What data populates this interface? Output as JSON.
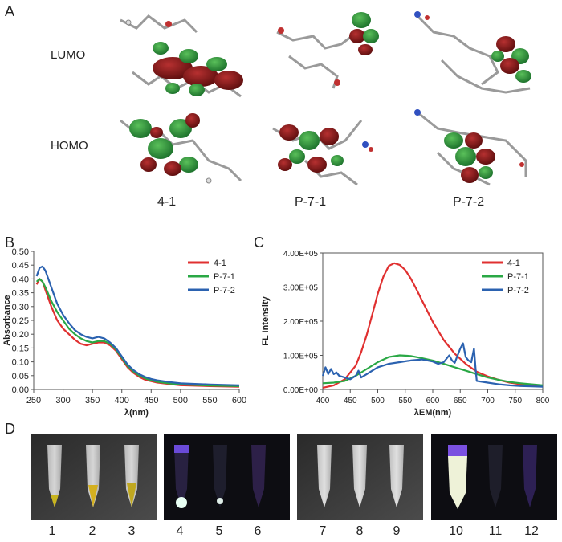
{
  "panel_labels": {
    "a": "A",
    "b": "B",
    "c": "C",
    "d": "D"
  },
  "panelA": {
    "rows": [
      "LUMO",
      "HOMO"
    ],
    "molecules": [
      "4-1",
      "P-7-1",
      "P-7-2"
    ]
  },
  "colors": {
    "red": "#e03030",
    "green": "#2aa845",
    "blue": "#2b62b0"
  },
  "chart_data": [
    {
      "type": "line",
      "panel": "B",
      "xlabel": "λ(nm)",
      "ylabel": "Absorbance",
      "xlim": [
        250,
        600
      ],
      "ylim": [
        0,
        0.5
      ],
      "xticks": [
        "250",
        "300",
        "350",
        "400",
        "450",
        "500",
        "550",
        "600"
      ],
      "yticks": [
        "0.00",
        "0.05",
        "0.10",
        "0.15",
        "0.20",
        "0.25",
        "0.30",
        "0.35",
        "0.40",
        "0.45",
        "0.50"
      ],
      "legend_position": "top-right",
      "series": [
        {
          "name": "4-1",
          "color": "#e03030",
          "x": [
            255,
            260,
            265,
            270,
            280,
            290,
            300,
            310,
            320,
            330,
            340,
            350,
            360,
            370,
            380,
            390,
            400,
            410,
            420,
            430,
            440,
            450,
            460,
            480,
            500,
            550,
            600
          ],
          "y": [
            0.38,
            0.4,
            0.39,
            0.36,
            0.3,
            0.25,
            0.22,
            0.2,
            0.18,
            0.165,
            0.16,
            0.165,
            0.17,
            0.17,
            0.16,
            0.14,
            0.11,
            0.08,
            0.06,
            0.045,
            0.035,
            0.03,
            0.025,
            0.02,
            0.015,
            0.012,
            0.01
          ]
        },
        {
          "name": "P-7-1",
          "color": "#2aa845",
          "x": [
            255,
            260,
            265,
            270,
            280,
            290,
            300,
            310,
            320,
            330,
            340,
            350,
            360,
            370,
            380,
            390,
            400,
            410,
            420,
            430,
            440,
            450,
            460,
            480,
            500,
            550,
            600
          ],
          "y": [
            0.39,
            0.4,
            0.39,
            0.37,
            0.32,
            0.28,
            0.25,
            0.22,
            0.2,
            0.185,
            0.175,
            0.17,
            0.175,
            0.175,
            0.165,
            0.145,
            0.115,
            0.085,
            0.065,
            0.05,
            0.04,
            0.033,
            0.028,
            0.022,
            0.018,
            0.014,
            0.012
          ]
        },
        {
          "name": "P-7-2",
          "color": "#2b62b0",
          "x": [
            255,
            260,
            265,
            270,
            280,
            290,
            300,
            310,
            320,
            330,
            340,
            350,
            360,
            370,
            380,
            390,
            400,
            410,
            420,
            430,
            440,
            450,
            460,
            480,
            500,
            550,
            600
          ],
          "y": [
            0.41,
            0.44,
            0.445,
            0.43,
            0.37,
            0.31,
            0.27,
            0.24,
            0.215,
            0.2,
            0.19,
            0.185,
            0.19,
            0.185,
            0.17,
            0.15,
            0.12,
            0.09,
            0.07,
            0.055,
            0.045,
            0.038,
            0.033,
            0.027,
            0.022,
            0.018,
            0.015
          ]
        }
      ]
    },
    {
      "type": "line",
      "panel": "C",
      "xlabel": "λEM(nm)",
      "ylabel": "FL Intensity",
      "xlim": [
        400,
        800
      ],
      "ylim": [
        0,
        400000
      ],
      "xticks": [
        "400",
        "450",
        "500",
        "550",
        "600",
        "650",
        "700",
        "750",
        "800"
      ],
      "yticks": [
        "0.00E+00",
        "1.00E+05",
        "2.00E+05",
        "3.00E+05",
        "4.00E+05"
      ],
      "legend_position": "top-right",
      "series": [
        {
          "name": "4-1",
          "color": "#e03030",
          "x": [
            400,
            420,
            440,
            460,
            470,
            480,
            490,
            500,
            510,
            520,
            530,
            540,
            550,
            560,
            570,
            580,
            590,
            600,
            620,
            640,
            660,
            680,
            700,
            720,
            740,
            760,
            780,
            800
          ],
          "y": [
            5000,
            12000,
            30000,
            70000,
            110000,
            160000,
            220000,
            280000,
            330000,
            362000,
            370000,
            365000,
            350000,
            325000,
            295000,
            262000,
            230000,
            198000,
            145000,
            105000,
            75000,
            52000,
            38000,
            28000,
            20000,
            15000,
            12000,
            10000
          ]
        },
        {
          "name": "P-7-1",
          "color": "#2aa845",
          "x": [
            400,
            420,
            440,
            460,
            480,
            500,
            520,
            540,
            560,
            580,
            600,
            620,
            640,
            660,
            680,
            700,
            720,
            740,
            760,
            780,
            800
          ],
          "y": [
            18000,
            20000,
            25000,
            40000,
            60000,
            80000,
            95000,
            100000,
            98000,
            92000,
            85000,
            75000,
            65000,
            55000,
            45000,
            35000,
            28000,
            22000,
            18000,
            15000,
            12000
          ]
        },
        {
          "name": "P-7-2",
          "color": "#2b62b0",
          "x": [
            400,
            405,
            410,
            415,
            420,
            425,
            430,
            440,
            450,
            460,
            465,
            470,
            480,
            490,
            500,
            520,
            540,
            560,
            580,
            600,
            610,
            620,
            630,
            635,
            640,
            650,
            655,
            660,
            665,
            670,
            675,
            678,
            680,
            700,
            720,
            740,
            760,
            780,
            800
          ],
          "y": [
            40000,
            65000,
            45000,
            60000,
            45000,
            50000,
            40000,
            35000,
            30000,
            40000,
            55000,
            35000,
            45000,
            55000,
            65000,
            75000,
            80000,
            85000,
            88000,
            82000,
            75000,
            80000,
            100000,
            85000,
            78000,
            120000,
            135000,
            95000,
            85000,
            80000,
            120000,
            60000,
            25000,
            20000,
            15000,
            12000,
            10000,
            9000,
            8000
          ]
        }
      ]
    }
  ],
  "panelD": {
    "tube_numbers": [
      "1",
      "2",
      "3",
      "4",
      "5",
      "6",
      "7",
      "8",
      "9",
      "10",
      "11",
      "12"
    ]
  }
}
